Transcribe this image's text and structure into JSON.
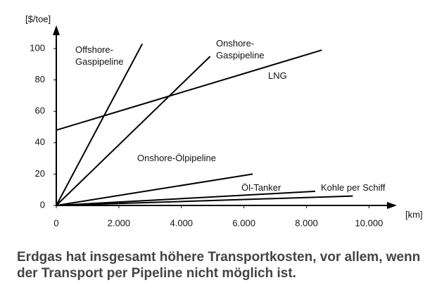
{
  "chart_data": {
    "type": "line",
    "ylabel": "[$/toe]",
    "xlabel": "[km]",
    "xlim": [
      0,
      10800
    ],
    "ylim": [
      0,
      113
    ],
    "xticks": [
      0,
      {
        "value": 2000,
        "label": "2.000"
      },
      {
        "value": 4000,
        "label": "4.000"
      },
      {
        "value": 6000,
        "label": "6.000"
      },
      {
        "value": 8000,
        "label": "8.000"
      },
      {
        "value": 10000,
        "label": "10.000"
      }
    ],
    "yticks": [
      0,
      20,
      40,
      60,
      80,
      100
    ],
    "series": [
      {
        "name": "Offshore-Gaspipeline",
        "color": "#000000",
        "x": [
          0,
          2750
        ],
        "values": [
          0,
          103
        ]
      },
      {
        "name": "Onshore-Gaspipeline",
        "color": "#000000",
        "x": [
          0,
          4920
        ],
        "values": [
          0,
          95
        ]
      },
      {
        "name": "LNG",
        "color": "#000000",
        "x": [
          0,
          8490
        ],
        "values": [
          48,
          99
        ]
      },
      {
        "name": "Onshore-Ölpipeline",
        "color": "#000000",
        "x": [
          0,
          6280
        ],
        "values": [
          0,
          20
        ]
      },
      {
        "name": "Öl-Tanker",
        "color": "#000000",
        "x": [
          0,
          8280
        ],
        "values": [
          0,
          9
        ]
      },
      {
        "name": "Kohle per Schiff",
        "color": "#000000",
        "x": [
          0,
          9480
        ],
        "values": [
          0,
          6
        ]
      }
    ],
    "caption": "Erdgas hat insgesamt höhere Transportkosten, vor allem, wenn der Transport per Pipeline nicht möglich ist."
  }
}
